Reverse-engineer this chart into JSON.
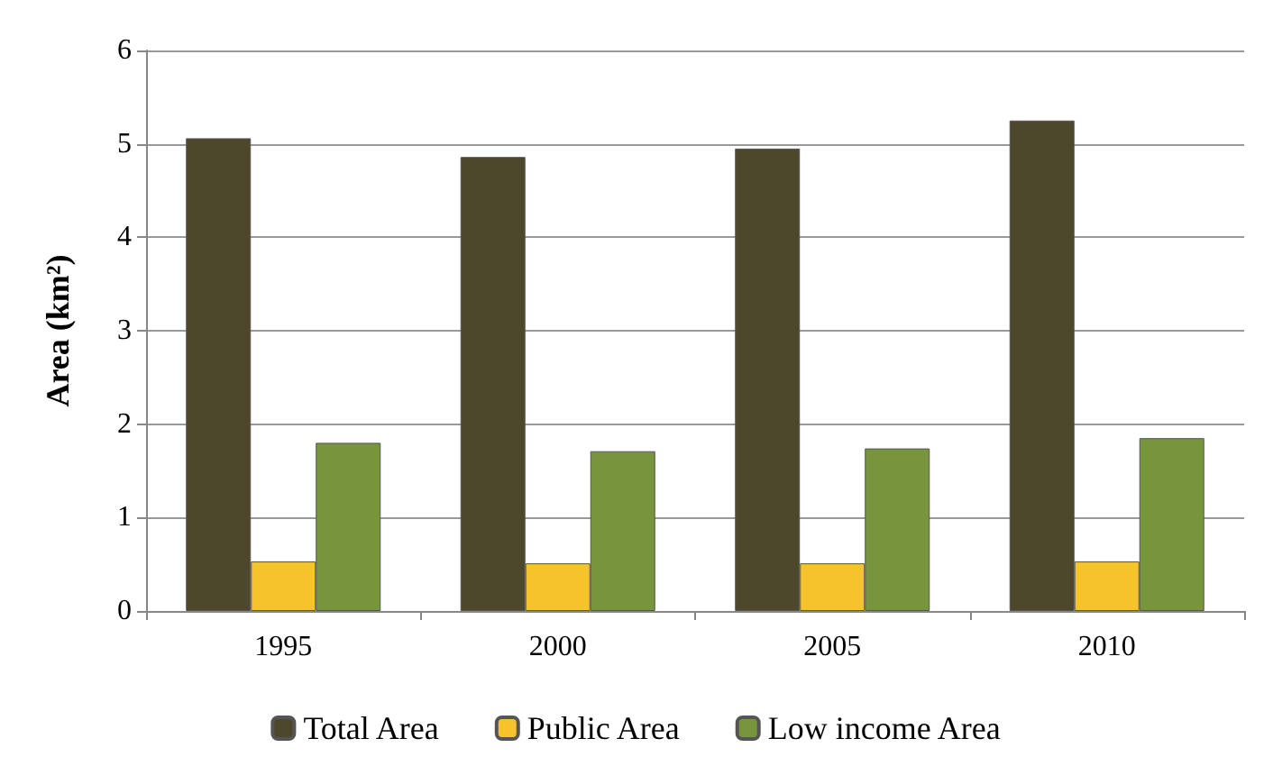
{
  "chart_data": {
    "type": "bar",
    "ylabel": "Area (km²)",
    "categories": [
      "1995",
      "2000",
      "2005",
      "2010"
    ],
    "series": [
      {
        "name": "Total Area",
        "color": "#4d472c",
        "values": [
          5.06,
          4.86,
          4.95,
          5.25
        ]
      },
      {
        "name": "Public Area",
        "color": "#f5c42c",
        "values": [
          0.53,
          0.51,
          0.51,
          0.53
        ]
      },
      {
        "name": "Low income Area",
        "color": "#77953c",
        "values": [
          1.8,
          1.71,
          1.74,
          1.85
        ]
      }
    ],
    "ylim": [
      0,
      6
    ],
    "yticks": [
      0,
      1,
      2,
      3,
      4,
      5,
      6
    ],
    "grid": "y",
    "legend": "bottom"
  }
}
